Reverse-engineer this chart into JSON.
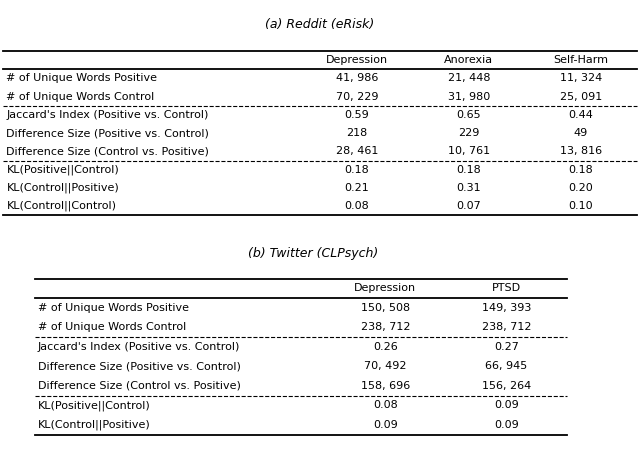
{
  "title_a": "(a) Reddit (eRisk)",
  "title_b": "(b) Twitter (CLPsych)",
  "table_a": {
    "col_headers": [
      "",
      "Depression",
      "Anorexia",
      "Self-Harm"
    ],
    "rows": [
      [
        "# of Unique Words Positive",
        "41, 986",
        "21, 448",
        "11, 324"
      ],
      [
        "# of Unique Words Control",
        "70, 229",
        "31, 980",
        "25, 091"
      ],
      [
        "Jaccard's Index (Positive vs. Control)",
        "0.59",
        "0.65",
        "0.44"
      ],
      [
        "Difference Size (Positive vs. Control)",
        "218",
        "229",
        "49"
      ],
      [
        "Difference Size (Control vs. Positive)",
        "28, 461",
        "10, 761",
        "13, 816"
      ],
      [
        "KL(Positive||Control)",
        "0.18",
        "0.18",
        "0.18"
      ],
      [
        "KL(Control||Positive)",
        "0.21",
        "0.31",
        "0.20"
      ],
      [
        "KL(Control||Control)",
        "0.08",
        "0.07",
        "0.10"
      ]
    ],
    "dashed_after": [
      1,
      4
    ]
  },
  "table_b": {
    "col_headers": [
      "",
      "Depression",
      "PTSD"
    ],
    "rows": [
      [
        "# of Unique Words Positive",
        "150, 508",
        "149, 393"
      ],
      [
        "# of Unique Words Control",
        "238, 712",
        "238, 712"
      ],
      [
        "Jaccard's Index (Positive vs. Control)",
        "0.26",
        "0.27"
      ],
      [
        "Difference Size (Positive vs. Control)",
        "70, 492",
        "66, 945"
      ],
      [
        "Difference Size (Control vs. Positive)",
        "158, 696",
        "156, 264"
      ],
      [
        "KL(Positive||Control)",
        "0.08",
        "0.09"
      ],
      [
        "KL(Control||Positive)",
        "0.09",
        "0.09"
      ]
    ],
    "dashed_after": [
      1,
      4
    ]
  },
  "fontsize": 8.0,
  "title_fontsize": 9.0,
  "fig_width": 6.4,
  "fig_height": 4.49,
  "bg_color": "#f0f0f0"
}
